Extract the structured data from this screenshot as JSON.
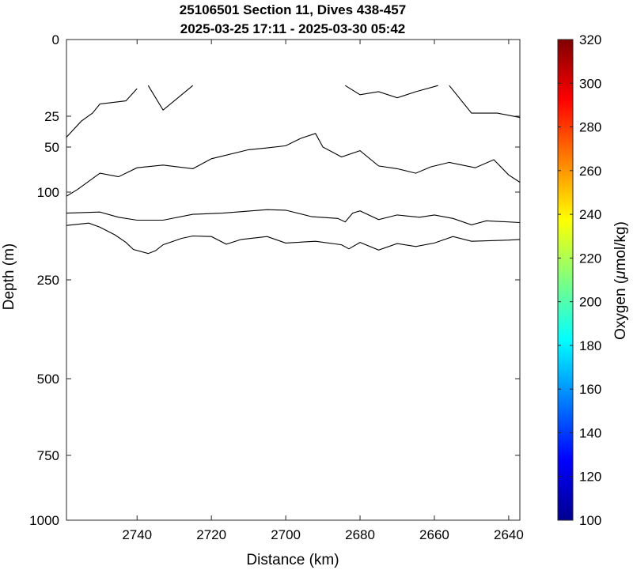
{
  "chart_data": {
    "type": "contour",
    "title": "25106501 Section 11, Dives 438-457",
    "subtitle": "2025-03-25 17:11 - 2025-03-30 05:42",
    "xlabel": "Distance (km)",
    "ylabel": "Depth (m)",
    "xlim": [
      2759,
      2637
    ],
    "x_reversed": true,
    "x_ticks": [
      2740,
      2720,
      2700,
      2680,
      2660,
      2640
    ],
    "y_ticks": [
      0,
      25,
      50,
      100,
      250,
      500,
      750,
      1000
    ],
    "y_scale": "piecewise",
    "ylim": [
      0,
      1000
    ],
    "grid": false,
    "colorbar": {
      "label": "Oxygen (μmol/kg)",
      "label_prefix": "Oxygen (",
      "label_mu": "μ",
      "label_suffix": "mol/kg)",
      "min": 100,
      "max": 320,
      "ticks": [
        100,
        120,
        140,
        160,
        180,
        200,
        220,
        240,
        260,
        280,
        300,
        320
      ],
      "colormap": "jet"
    },
    "contours": [
      [
        [
          2759,
          42
        ],
        [
          2755,
          29
        ],
        [
          2752,
          24
        ],
        [
          2750,
          21
        ],
        [
          2743,
          20
        ],
        [
          2740,
          16
        ]
      ],
      [
        [
          2737,
          15
        ],
        [
          2733,
          23
        ],
        [
          2725,
          15
        ]
      ],
      [
        [
          2684,
          15
        ],
        [
          2680,
          18
        ],
        [
          2675,
          17
        ],
        [
          2670,
          19
        ],
        [
          2665,
          17
        ],
        [
          2659,
          15
        ]
      ],
      [
        [
          2656,
          15
        ],
        [
          2650,
          24
        ],
        [
          2643,
          24
        ],
        [
          2637,
          26
        ]
      ],
      [
        [
          2759,
          107
        ],
        [
          2756,
          97
        ],
        [
          2750,
          79
        ],
        [
          2745,
          83
        ],
        [
          2740,
          73
        ],
        [
          2733,
          70
        ],
        [
          2725,
          74
        ],
        [
          2720,
          63
        ],
        [
          2710,
          53
        ],
        [
          2705,
          51
        ],
        [
          2700,
          49
        ],
        [
          2696,
          43
        ],
        [
          2692,
          39
        ],
        [
          2690,
          50
        ],
        [
          2685,
          61
        ],
        [
          2680,
          54
        ],
        [
          2675,
          71
        ],
        [
          2670,
          74
        ],
        [
          2665,
          79
        ],
        [
          2661,
          72
        ],
        [
          2656,
          67
        ],
        [
          2649,
          73
        ],
        [
          2644,
          64
        ],
        [
          2640,
          81
        ],
        [
          2637,
          89
        ]
      ],
      [
        [
          2759,
          136
        ],
        [
          2750,
          134
        ],
        [
          2745,
          143
        ],
        [
          2740,
          148
        ],
        [
          2733,
          148
        ],
        [
          2725,
          138
        ],
        [
          2717,
          136
        ],
        [
          2705,
          130
        ],
        [
          2700,
          131
        ],
        [
          2693,
          142
        ],
        [
          2686,
          145
        ],
        [
          2684,
          151
        ],
        [
          2682,
          136
        ],
        [
          2680,
          132
        ],
        [
          2675,
          147
        ],
        [
          2670,
          139
        ],
        [
          2664,
          143
        ],
        [
          2660,
          139
        ],
        [
          2655,
          145
        ],
        [
          2650,
          156
        ],
        [
          2646,
          149
        ],
        [
          2637,
          152
        ]
      ],
      [
        [
          2759,
          157
        ],
        [
          2753,
          153
        ],
        [
          2750,
          160
        ],
        [
          2746,
          173
        ],
        [
          2743,
          186
        ],
        [
          2741,
          198
        ],
        [
          2737,
          205
        ],
        [
          2735,
          200
        ],
        [
          2733,
          190
        ],
        [
          2728,
          179
        ],
        [
          2725,
          175
        ],
        [
          2720,
          176
        ],
        [
          2716,
          189
        ],
        [
          2712,
          181
        ],
        [
          2705,
          176
        ],
        [
          2700,
          187
        ],
        [
          2692,
          184
        ],
        [
          2685,
          190
        ],
        [
          2683,
          197
        ],
        [
          2680,
          186
        ],
        [
          2675,
          199
        ],
        [
          2670,
          188
        ],
        [
          2665,
          193
        ],
        [
          2660,
          187
        ],
        [
          2655,
          176
        ],
        [
          2650,
          184
        ],
        [
          2640,
          182
        ],
        [
          2637,
          181
        ]
      ]
    ]
  }
}
